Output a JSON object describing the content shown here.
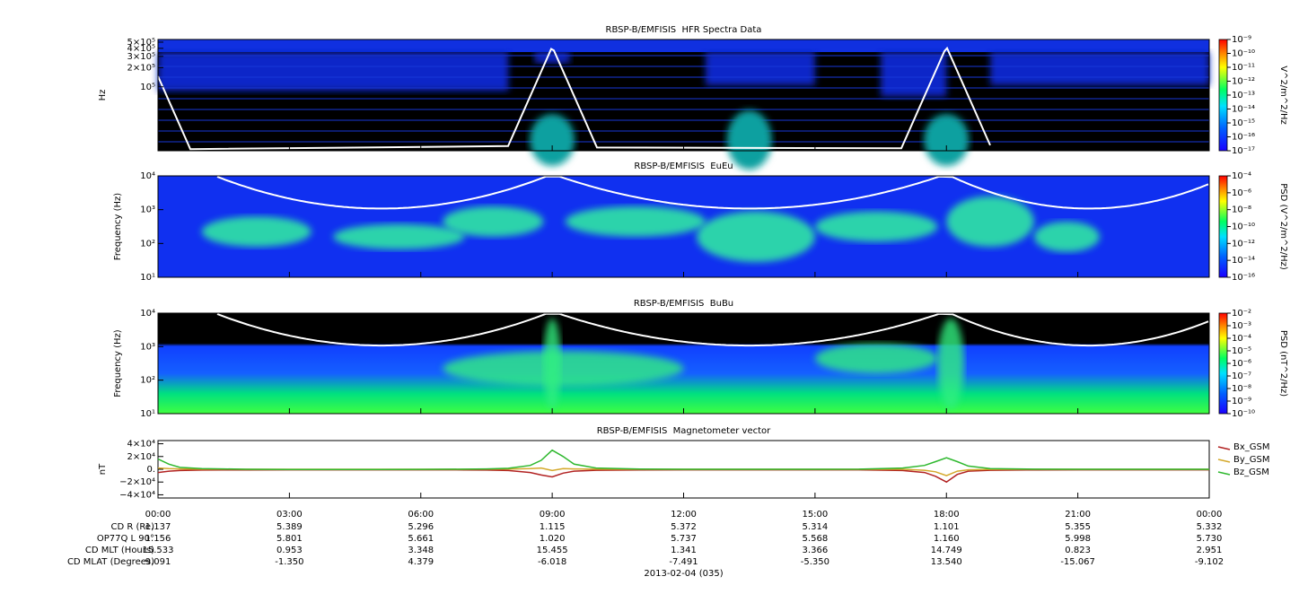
{
  "chart_data": [
    {
      "type": "spectrogram",
      "title": "RBSP-B/EMFISIS  HFR Spectra Data",
      "ylabel": "Hz",
      "log_y": true,
      "ylim": [
        10000,
        550000
      ],
      "yticks": [
        {
          "value": 500000,
          "label": "5×10⁵"
        },
        {
          "value": 400000,
          "label": "4×10⁵"
        },
        {
          "value": 300000,
          "label": "3×10⁵"
        },
        {
          "value": 200000,
          "label": "2×10⁵"
        },
        {
          "value": 100000,
          "label": "10⁵"
        }
      ],
      "colorbar": {
        "label": "V^2/m^2/Hz",
        "lim": [
          1e-17,
          1e-09
        ],
        "ticks": [
          {
            "value": 1e-09,
            "label": "10⁻⁹"
          },
          {
            "value": 1e-10,
            "label": "10⁻¹⁰"
          },
          {
            "value": 1e-11,
            "label": "10⁻¹¹"
          },
          {
            "value": 1e-12,
            "label": "10⁻¹²"
          },
          {
            "value": 1e-13,
            "label": "10⁻¹³"
          },
          {
            "value": 1e-14,
            "label": "10⁻¹⁴"
          },
          {
            "value": 1e-15,
            "label": "10⁻¹⁵"
          },
          {
            "value": 1e-16,
            "label": "10⁻¹⁶"
          },
          {
            "value": 1e-17,
            "label": "10⁻¹⁷"
          }
        ]
      }
    },
    {
      "type": "spectrogram",
      "title": "RBSP-B/EMFISIS  EuEu",
      "ylabel": "Frequency (Hz)",
      "log_y": true,
      "ylim": [
        10,
        10000
      ],
      "yticks": [
        {
          "value": 10000,
          "label": "10⁴"
        },
        {
          "value": 1000,
          "label": "10³"
        },
        {
          "value": 100,
          "label": "10²"
        },
        {
          "value": 10,
          "label": "10¹"
        }
      ],
      "colorbar": {
        "label": "PSD (V^2/m^2/Hz)",
        "lim": [
          1e-16,
          0.0001
        ],
        "ticks": [
          {
            "value": 0.0001,
            "label": "10⁻⁴"
          },
          {
            "value": 1e-06,
            "label": "10⁻⁶"
          },
          {
            "value": 1e-08,
            "label": "10⁻⁸"
          },
          {
            "value": 1e-10,
            "label": "10⁻¹⁰"
          },
          {
            "value": 1e-12,
            "label": "10⁻¹²"
          },
          {
            "value": 1e-14,
            "label": "10⁻¹⁴"
          },
          {
            "value": 1e-16,
            "label": "10⁻¹⁶"
          }
        ]
      }
    },
    {
      "type": "spectrogram",
      "title": "RBSP-B/EMFISIS  BuBu",
      "ylabel": "Frequency (Hz)",
      "log_y": true,
      "ylim": [
        10,
        10000
      ],
      "yticks": [
        {
          "value": 10000,
          "label": "10⁴"
        },
        {
          "value": 1000,
          "label": "10³"
        },
        {
          "value": 100,
          "label": "10²"
        },
        {
          "value": 10,
          "label": "10¹"
        }
      ],
      "colorbar": {
        "label": "PSD (nT^2/Hz)",
        "lim": [
          1e-10,
          0.01
        ],
        "ticks": [
          {
            "value": 0.01,
            "label": "10⁻²"
          },
          {
            "value": 0.001,
            "label": "10⁻³"
          },
          {
            "value": 0.0001,
            "label": "10⁻⁴"
          },
          {
            "value": 1e-05,
            "label": "10⁻⁵"
          },
          {
            "value": 1e-06,
            "label": "10⁻⁶"
          },
          {
            "value": 1e-07,
            "label": "10⁻⁷"
          },
          {
            "value": 1e-08,
            "label": "10⁻⁸"
          },
          {
            "value": 1e-09,
            "label": "10⁻⁹"
          },
          {
            "value": 1e-10,
            "label": "10⁻¹⁰"
          }
        ]
      }
    },
    {
      "type": "line",
      "title": "RBSP-B/EMFISIS  Magnetometer vector",
      "ylabel": "nT",
      "ylim": [
        -45000,
        45000
      ],
      "yticks": [
        {
          "value": 40000,
          "label": "4×10⁴"
        },
        {
          "value": 20000,
          "label": "2×10⁴"
        },
        {
          "value": 0,
          "label": "0."
        },
        {
          "value": -20000,
          "label": "−2×10⁴"
        },
        {
          "value": -40000,
          "label": "−4×10⁴"
        }
      ],
      "xlim": [
        0,
        24
      ],
      "xticks": [
        {
          "value": 0,
          "label": "00:00"
        },
        {
          "value": 3,
          "label": "03:00"
        },
        {
          "value": 6,
          "label": "06:00"
        },
        {
          "value": 9,
          "label": "09:00"
        },
        {
          "value": 12,
          "label": "12:00"
        },
        {
          "value": 15,
          "label": "15:00"
        },
        {
          "value": 18,
          "label": "18:00"
        },
        {
          "value": 21,
          "label": "21:00"
        },
        {
          "value": 24,
          "label": "00:00"
        }
      ],
      "legend": "outside-right",
      "x": [
        0,
        0.25,
        0.5,
        1,
        1.5,
        2,
        3,
        4,
        5,
        6,
        7,
        7.5,
        8,
        8.5,
        8.75,
        9,
        9.25,
        9.5,
        10,
        11,
        12,
        13,
        14,
        15,
        16,
        17,
        17.5,
        17.75,
        18,
        18.25,
        18.5,
        19,
        20,
        21,
        22,
        23,
        24
      ],
      "series": [
        {
          "name": "Bx_GSM",
          "color": "#b22222",
          "values": [
            -5000,
            -3000,
            -2000,
            -1200,
            -1000,
            -1000,
            -900,
            -900,
            -900,
            -900,
            -1000,
            -1300,
            -2000,
            -5000,
            -9000,
            -12000,
            -6000,
            -3000,
            -1500,
            -1000,
            -800,
            -800,
            -800,
            -800,
            -900,
            -2000,
            -5000,
            -11000,
            -20000,
            -8000,
            -3000,
            -1500,
            -1000,
            -900,
            -900,
            -900,
            -900
          ]
        },
        {
          "name": "By_GSM",
          "color": "#d4a82a",
          "values": [
            2000,
            1000,
            500,
            200,
            100,
            0,
            0,
            0,
            0,
            0,
            0,
            100,
            300,
            1000,
            2000,
            -2000,
            1000,
            500,
            200,
            0,
            0,
            0,
            0,
            0,
            0,
            0,
            -1500,
            -4000,
            -10000,
            -3000,
            -800,
            -200,
            0,
            0,
            0,
            0,
            0
          ]
        },
        {
          "name": "Bz_GSM",
          "color": "#2eb82e",
          "values": [
            16000,
            8000,
            3000,
            1000,
            500,
            0,
            -300,
            -300,
            -300,
            -200,
            200,
            500,
            1500,
            6000,
            14000,
            30000,
            20000,
            8000,
            2000,
            300,
            0,
            0,
            0,
            0,
            200,
            2000,
            6000,
            12000,
            18000,
            12000,
            5000,
            1000,
            200,
            0,
            0,
            0,
            0
          ]
        }
      ]
    }
  ],
  "ephemeris": {
    "rows": [
      {
        "label": "CD R (Re)",
        "values": [
          "1.137",
          "5.389",
          "5.296",
          "1.115",
          "5.372",
          "5.314",
          "1.101",
          "5.355",
          "5.332"
        ]
      },
      {
        "label": "OP77Q L 90°",
        "values": [
          "1.156",
          "5.801",
          "5.661",
          "1.020",
          "5.737",
          "5.568",
          "1.160",
          "5.998",
          "5.730"
        ]
      },
      {
        "label": "CD MLT (Hours)",
        "values": [
          "15.533",
          "0.953",
          "3.348",
          "15.455",
          "1.341",
          "3.366",
          "14.749",
          "0.823",
          "2.951"
        ]
      },
      {
        "label": "CD MLAT (Degrees)",
        "values": [
          "9.091",
          "-1.350",
          "4.379",
          "-6.018",
          "-7.491",
          "-5.350",
          "13.540",
          "-15.067",
          "-9.102"
        ]
      }
    ],
    "date": "2013-02-04 (035)"
  }
}
